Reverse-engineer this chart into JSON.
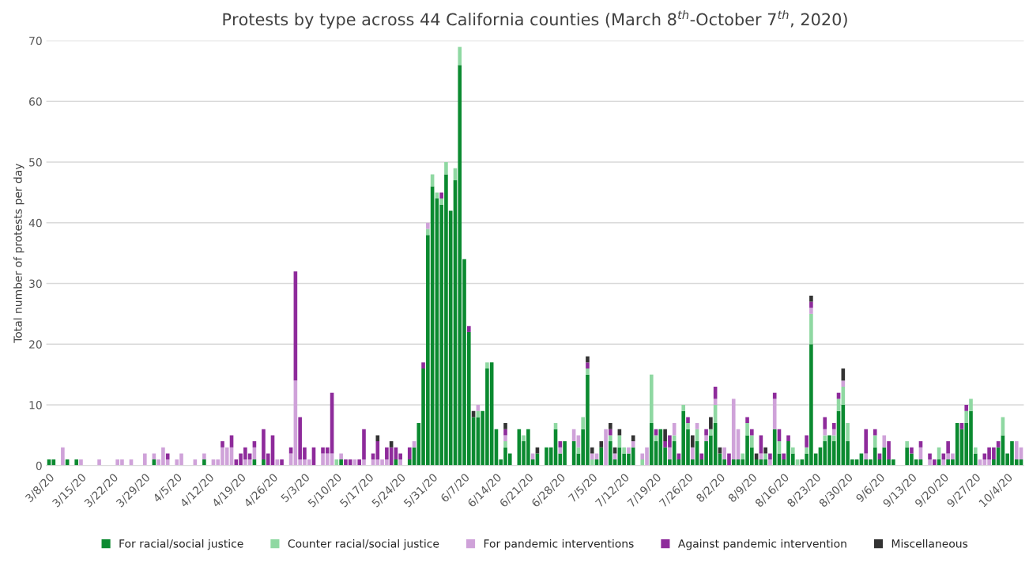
{
  "chart_data": {
    "type": "bar",
    "stacked": true,
    "title": "Protests by type across 44 California counties (March 8$^{th}$-October 7$^{th}$, 2020)",
    "ylabel": "Total number of protests per day",
    "categories": [
      "3/8/20",
      null,
      null,
      null,
      null,
      null,
      null,
      "3/15/20",
      null,
      null,
      null,
      null,
      null,
      null,
      "3/22/20",
      null,
      null,
      null,
      null,
      null,
      null,
      "3/29/20",
      null,
      null,
      null,
      null,
      null,
      null,
      "4/5/20",
      null,
      null,
      null,
      null,
      null,
      null,
      "4/12/20",
      null,
      null,
      null,
      null,
      null,
      null,
      "4/19/20",
      null,
      null,
      null,
      null,
      null,
      null,
      "4/26/20",
      null,
      null,
      null,
      null,
      null,
      null,
      "5/3/20",
      null,
      null,
      null,
      null,
      null,
      null,
      "5/10/20",
      null,
      null,
      null,
      null,
      null,
      null,
      "5/17/20",
      null,
      null,
      null,
      null,
      null,
      null,
      "5/24/20",
      null,
      null,
      null,
      null,
      null,
      null,
      "5/31/20",
      null,
      null,
      null,
      null,
      null,
      null,
      "6/7/20",
      null,
      null,
      null,
      null,
      null,
      null,
      "6/14/20",
      null,
      null,
      null,
      null,
      null,
      null,
      "6/21/20",
      null,
      null,
      null,
      null,
      null,
      null,
      "6/28/20",
      null,
      null,
      null,
      null,
      null,
      null,
      "7/5/20",
      null,
      null,
      null,
      null,
      null,
      null,
      "7/12/20",
      null,
      null,
      null,
      null,
      null,
      null,
      "7/19/20",
      null,
      null,
      null,
      null,
      null,
      null,
      "7/26/20",
      null,
      null,
      null,
      null,
      null,
      null,
      "8/2/20",
      null,
      null,
      null,
      null,
      null,
      null,
      "8/9/20",
      null,
      null,
      null,
      null,
      null,
      null,
      "8/16/20",
      null,
      null,
      null,
      null,
      null,
      null,
      "8/23/20",
      null,
      null,
      null,
      null,
      null,
      null,
      "8/30/20",
      null,
      null,
      null,
      null,
      null,
      null,
      "9/6/20",
      null,
      null,
      null,
      null,
      null,
      null,
      "9/13/20",
      null,
      null,
      null,
      null,
      null,
      null,
      "9/20/20",
      null,
      null,
      null,
      null,
      null,
      null,
      "9/27/20",
      null,
      null,
      null,
      null,
      null,
      null,
      "10/4/20",
      null,
      null,
      null
    ],
    "series": [
      {
        "name": "For racial/social justice",
        "color": "#0b8a30",
        "values": [
          1,
          1,
          0,
          0,
          1,
          0,
          1,
          0,
          0,
          0,
          0,
          0,
          0,
          0,
          0,
          0,
          0,
          0,
          0,
          0,
          0,
          0,
          0,
          1,
          0,
          0,
          0,
          0,
          0,
          0,
          0,
          0,
          0,
          0,
          1,
          0,
          0,
          0,
          0,
          0,
          0,
          0,
          0,
          0,
          0,
          1,
          0,
          1,
          0,
          0,
          0,
          0,
          0,
          0,
          0,
          0,
          0,
          0,
          0,
          0,
          0,
          0,
          0,
          0,
          1,
          0,
          0,
          0,
          0,
          0,
          0,
          0,
          0,
          0,
          0,
          0,
          1,
          0,
          0,
          1,
          3,
          7,
          16,
          38,
          46,
          44,
          43,
          48,
          42,
          47,
          66,
          34,
          22,
          8,
          8,
          9,
          16,
          17,
          6,
          1,
          3,
          2,
          0,
          6,
          4,
          6,
          1,
          2,
          0,
          3,
          3,
          6,
          2,
          4,
          0,
          4,
          2,
          6,
          15,
          0,
          1,
          3,
          0,
          4,
          1,
          3,
          2,
          2,
          3,
          0,
          0,
          0,
          7,
          4,
          6,
          3,
          1,
          4,
          1,
          9,
          6,
          1,
          4,
          1,
          4,
          5,
          7,
          2,
          1,
          0,
          1,
          1,
          1,
          5,
          3,
          1,
          1,
          1,
          0,
          6,
          2,
          1,
          4,
          2,
          0,
          1,
          2,
          20,
          2,
          3,
          4,
          5,
          4,
          9,
          10,
          4,
          1,
          1,
          2,
          1,
          1,
          3,
          1,
          3,
          1,
          1,
          0,
          0,
          3,
          2,
          1,
          1,
          0,
          0,
          0,
          1,
          0,
          1,
          1,
          7,
          6,
          7,
          9,
          2,
          0,
          0,
          0,
          1,
          3,
          5,
          2,
          4,
          1,
          1
        ]
      },
      {
        "name": "Counter racial/social justice",
        "color": "#8fd8a2",
        "values": [
          0,
          0,
          0,
          0,
          0,
          0,
          0,
          0,
          0,
          0,
          0,
          0,
          0,
          0,
          0,
          0,
          0,
          0,
          0,
          0,
          0,
          0,
          0,
          0,
          0,
          0,
          0,
          0,
          0,
          0,
          0,
          0,
          0,
          0,
          0,
          0,
          0,
          0,
          0,
          0,
          0,
          0,
          0,
          0,
          0,
          0,
          0,
          0,
          0,
          0,
          0,
          0,
          0,
          0,
          0,
          0,
          0,
          0,
          0,
          0,
          0,
          0,
          0,
          1,
          0,
          0,
          0,
          0,
          0,
          0,
          0,
          0,
          0,
          0,
          0,
          0,
          0,
          0,
          0,
          0,
          0,
          0,
          0,
          1,
          2,
          1,
          1,
          2,
          0,
          2,
          3,
          0,
          0,
          0,
          1,
          0,
          1,
          0,
          0,
          0,
          1,
          0,
          0,
          0,
          1,
          0,
          0,
          0,
          0,
          0,
          0,
          1,
          0,
          0,
          0,
          0,
          1,
          2,
          1,
          1,
          0,
          0,
          0,
          1,
          0,
          2,
          1,
          0,
          0,
          0,
          1,
          0,
          8,
          1,
          0,
          0,
          0,
          1,
          0,
          1,
          1,
          0,
          2,
          0,
          0,
          1,
          3,
          0,
          0,
          0,
          0,
          0,
          1,
          2,
          2,
          0,
          0,
          1,
          0,
          0,
          2,
          0,
          0,
          1,
          1,
          0,
          1,
          5,
          0,
          0,
          1,
          0,
          1,
          2,
          3,
          3,
          0,
          0,
          0,
          0,
          0,
          2,
          0,
          0,
          0,
          0,
          0,
          0,
          1,
          0,
          0,
          0,
          0,
          0,
          0,
          2,
          0,
          0,
          0,
          0,
          0,
          2,
          2,
          1,
          0,
          0,
          0,
          0,
          0,
          3,
          0,
          0,
          0,
          0
        ]
      },
      {
        "name": "For pandemic interventions",
        "color": "#cfa2d9",
        "values": [
          0,
          0,
          0,
          3,
          0,
          0,
          0,
          1,
          0,
          0,
          0,
          1,
          0,
          0,
          0,
          1,
          1,
          0,
          1,
          0,
          0,
          2,
          0,
          1,
          1,
          3,
          1,
          0,
          1,
          2,
          0,
          0,
          1,
          0,
          1,
          0,
          1,
          1,
          3,
          3,
          3,
          0,
          0,
          1,
          1,
          2,
          0,
          0,
          0,
          0,
          1,
          0,
          0,
          2,
          14,
          1,
          1,
          1,
          0,
          0,
          2,
          2,
          2,
          0,
          1,
          0,
          0,
          1,
          0,
          1,
          0,
          1,
          1,
          1,
          1,
          0,
          0,
          1,
          0,
          0,
          1,
          0,
          0,
          1,
          0,
          0,
          0,
          0,
          0,
          0,
          0,
          0,
          0,
          0,
          1,
          0,
          0,
          0,
          0,
          0,
          1,
          0,
          0,
          0,
          0,
          0,
          1,
          0,
          0,
          0,
          0,
          0,
          1,
          0,
          0,
          2,
          2,
          0,
          0,
          1,
          1,
          0,
          6,
          0,
          1,
          0,
          0,
          1,
          1,
          0,
          1,
          3,
          0,
          0,
          0,
          0,
          2,
          2,
          0,
          0,
          0,
          2,
          1,
          0,
          1,
          0,
          1,
          0,
          2,
          0,
          10,
          5,
          0,
          0,
          0,
          0,
          1,
          0,
          1,
          5,
          0,
          0,
          0,
          0,
          0,
          0,
          0,
          1,
          0,
          0,
          1,
          0,
          1,
          0,
          1,
          0,
          0,
          0,
          0,
          1,
          0,
          0,
          0,
          2,
          0,
          0,
          0,
          0,
          0,
          0,
          0,
          2,
          0,
          1,
          0,
          0,
          1,
          1,
          1,
          0,
          0,
          0,
          0,
          0,
          1,
          1,
          1,
          0,
          0,
          0,
          0,
          0,
          3,
          2
        ]
      },
      {
        "name": "Against pandemic intervention",
        "color": "#8e2b9b",
        "values": [
          0,
          0,
          0,
          0,
          0,
          0,
          0,
          0,
          0,
          0,
          0,
          0,
          0,
          0,
          0,
          0,
          0,
          0,
          0,
          0,
          0,
          0,
          0,
          0,
          0,
          0,
          1,
          0,
          0,
          0,
          0,
          0,
          0,
          0,
          0,
          0,
          0,
          0,
          1,
          0,
          2,
          1,
          2,
          2,
          1,
          1,
          0,
          5,
          2,
          5,
          0,
          1,
          0,
          1,
          18,
          7,
          2,
          0,
          3,
          0,
          1,
          1,
          10,
          0,
          0,
          1,
          1,
          0,
          1,
          5,
          0,
          1,
          3,
          0,
          2,
          3,
          2,
          1,
          0,
          2,
          0,
          0,
          1,
          0,
          0,
          0,
          1,
          0,
          0,
          0,
          0,
          0,
          1,
          0,
          0,
          0,
          0,
          0,
          0,
          0,
          1,
          0,
          0,
          0,
          0,
          0,
          0,
          0,
          0,
          0,
          0,
          0,
          1,
          0,
          0,
          0,
          0,
          0,
          1,
          0,
          0,
          0,
          0,
          1,
          0,
          0,
          0,
          0,
          0,
          0,
          0,
          0,
          0,
          1,
          0,
          1,
          2,
          0,
          1,
          0,
          1,
          0,
          0,
          1,
          1,
          0,
          2,
          0,
          0,
          2,
          0,
          0,
          0,
          1,
          1,
          0,
          3,
          0,
          1,
          1,
          2,
          1,
          1,
          0,
          0,
          0,
          2,
          1,
          0,
          0,
          2,
          0,
          1,
          1,
          0,
          0,
          0,
          0,
          0,
          4,
          0,
          1,
          1,
          0,
          3,
          0,
          0,
          0,
          0,
          1,
          0,
          1,
          0,
          1,
          1,
          0,
          1,
          2,
          0,
          0,
          1,
          1,
          0,
          0,
          0,
          1,
          2,
          2,
          1,
          0,
          0,
          0,
          0,
          0
        ]
      },
      {
        "name": "Miscellaneous",
        "color": "#333333",
        "values": [
          0,
          0,
          0,
          0,
          0,
          0,
          0,
          0,
          0,
          0,
          0,
          0,
          0,
          0,
          0,
          0,
          0,
          0,
          0,
          0,
          0,
          0,
          0,
          0,
          0,
          0,
          0,
          0,
          0,
          0,
          0,
          0,
          0,
          0,
          0,
          0,
          0,
          0,
          0,
          0,
          0,
          0,
          0,
          0,
          0,
          0,
          0,
          0,
          0,
          0,
          0,
          0,
          0,
          0,
          0,
          0,
          0,
          0,
          0,
          0,
          0,
          0,
          0,
          0,
          0,
          0,
          0,
          0,
          0,
          0,
          0,
          0,
          1,
          0,
          0,
          1,
          0,
          0,
          0,
          0,
          0,
          0,
          0,
          0,
          0,
          0,
          0,
          0,
          0,
          0,
          0,
          0,
          0,
          1,
          0,
          0,
          0,
          0,
          0,
          0,
          1,
          0,
          0,
          0,
          0,
          0,
          0,
          1,
          0,
          0,
          0,
          0,
          0,
          0,
          0,
          0,
          0,
          0,
          1,
          1,
          0,
          1,
          0,
          1,
          1,
          1,
          0,
          0,
          1,
          0,
          0,
          0,
          0,
          0,
          0,
          2,
          0,
          0,
          0,
          0,
          0,
          2,
          0,
          0,
          0,
          2,
          0,
          1,
          0,
          0,
          0,
          0,
          0,
          0,
          0,
          1,
          0,
          1,
          0,
          0,
          0,
          0,
          0,
          0,
          0,
          0,
          0,
          1,
          0,
          0,
          0,
          0,
          0,
          0,
          2,
          0,
          0,
          0,
          0,
          0,
          0,
          0,
          0,
          0,
          0,
          0,
          0,
          0,
          0,
          0,
          0,
          0,
          0,
          0,
          0,
          0,
          0,
          0,
          0,
          0,
          0,
          0,
          0,
          0,
          0,
          0,
          0,
          0,
          0,
          0,
          0,
          0,
          0,
          0
        ]
      }
    ],
    "ylim": [
      0,
      70
    ],
    "yticks": [
      0,
      10,
      20,
      30,
      40,
      50,
      60,
      70
    ],
    "grid": "y",
    "legend": "bottom"
  }
}
